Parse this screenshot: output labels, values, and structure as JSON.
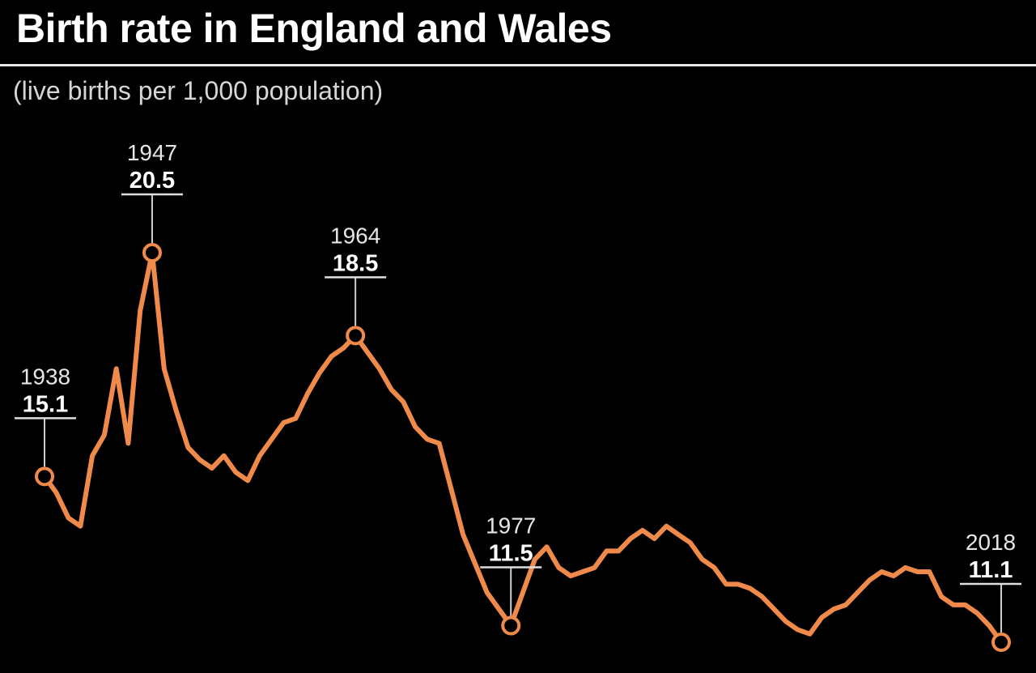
{
  "header": {
    "title": "Birth rate in England and Wales",
    "subtitle": "(live births per 1,000 population)"
  },
  "colors": {
    "background": "#000000",
    "line": "#f08a4b",
    "text": "#ffffff",
    "rule": "#e8e8e8"
  },
  "chart_data": {
    "type": "line",
    "title": "Birth rate in England and Wales",
    "subtitle": "(live births per 1,000 population)",
    "xlabel": "",
    "ylabel": "",
    "xlim": [
      1938,
      2018
    ],
    "grid": false,
    "series": [
      {
        "x": [
          1938,
          1939,
          1940,
          1941,
          1942,
          1943,
          1944,
          1945,
          1946,
          1947,
          1948,
          1949,
          1950,
          1951,
          1952,
          1953,
          1954,
          1955,
          1956,
          1957,
          1958,
          1959,
          1960,
          1961,
          1962,
          1963,
          1964,
          1965,
          1966,
          1967,
          1968,
          1969,
          1970,
          1971,
          1972,
          1973,
          1974,
          1975,
          1976,
          1977,
          1978,
          1979,
          1980,
          1981,
          1982,
          1983,
          1984,
          1985,
          1986,
          1987,
          1988,
          1989,
          1990,
          1991,
          1992,
          1993,
          1994,
          1995,
          1996,
          1997,
          1998,
          1999,
          2000,
          2001,
          2002,
          2003,
          2004,
          2005,
          2006,
          2007,
          2008,
          2009,
          2010,
          2011,
          2012,
          2013,
          2014,
          2015,
          2016,
          2017,
          2018
        ],
        "y": [
          15.1,
          14.7,
          14.1,
          13.9,
          15.6,
          16.1,
          17.7,
          15.9,
          19.1,
          20.5,
          17.7,
          16.7,
          15.8,
          15.5,
          15.3,
          15.6,
          15.2,
          15.0,
          15.6,
          16.0,
          16.4,
          16.5,
          17.1,
          17.6,
          18.0,
          18.2,
          18.5,
          18.1,
          17.7,
          17.2,
          16.9,
          16.3,
          16.0,
          15.9,
          14.8,
          13.7,
          13.0,
          12.3,
          11.9,
          11.5,
          12.3,
          13.1,
          13.4,
          12.9,
          12.7,
          12.8,
          12.9,
          13.3,
          13.3,
          13.6,
          13.8,
          13.6,
          13.9,
          13.7,
          13.5,
          13.1,
          12.9,
          12.5,
          12.5,
          12.4,
          12.2,
          11.9,
          11.6,
          11.4,
          11.3,
          11.7,
          11.9,
          12.0,
          12.3,
          12.6,
          12.8,
          12.7,
          12.9,
          12.8,
          12.8,
          12.2,
          12.0,
          12.0,
          11.8,
          11.5,
          11.1
        ]
      }
    ],
    "annotations": [
      {
        "x": 1938,
        "year": "1938",
        "value": "15.1"
      },
      {
        "x": 1947,
        "year": "1947",
        "value": "20.5"
      },
      {
        "x": 1964,
        "year": "1964",
        "value": "18.5"
      },
      {
        "x": 1977,
        "year": "1977",
        "value": "11.5"
      },
      {
        "x": 2018,
        "year": "2018",
        "value": "11.1"
      }
    ]
  }
}
